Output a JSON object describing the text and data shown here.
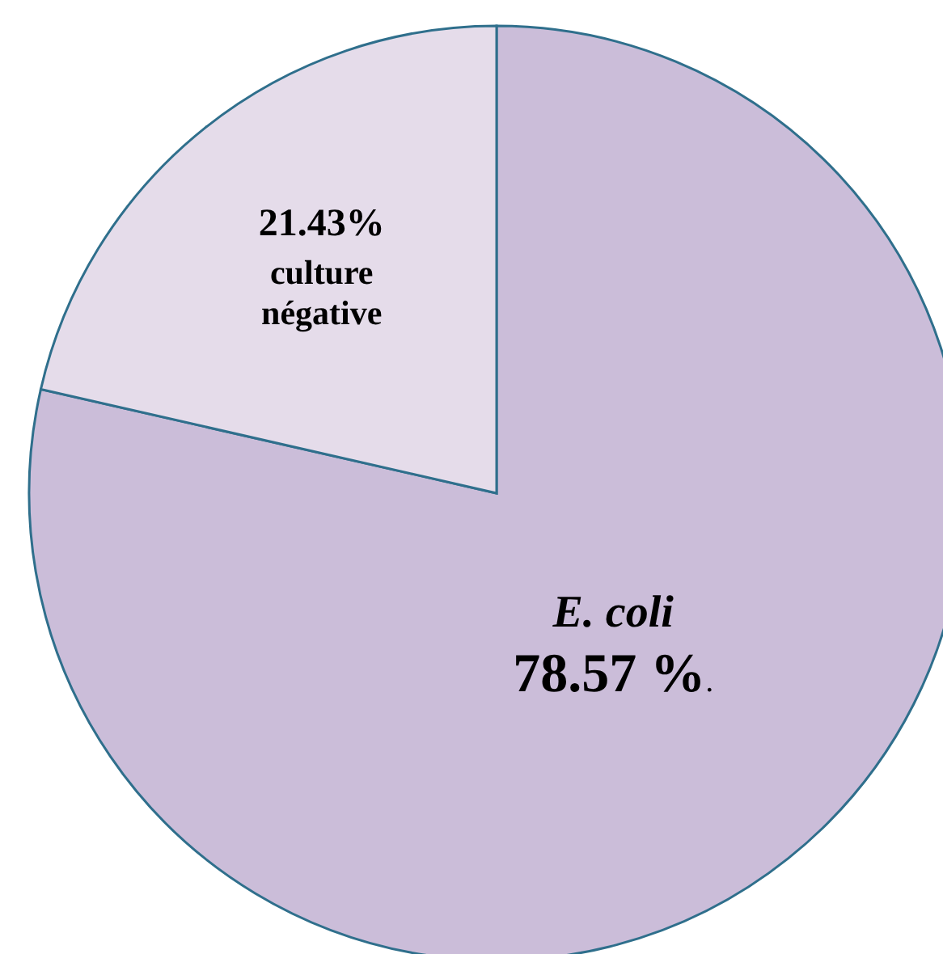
{
  "chart_data": {
    "type": "pie",
    "categories": [
      "E. coli",
      "culture négative"
    ],
    "values": [
      78.57,
      21.43
    ],
    "value_labels": [
      "78.57 %.",
      "21.43%"
    ],
    "colors": [
      "#cbbdd9",
      "#e5dcea"
    ]
  }
}
